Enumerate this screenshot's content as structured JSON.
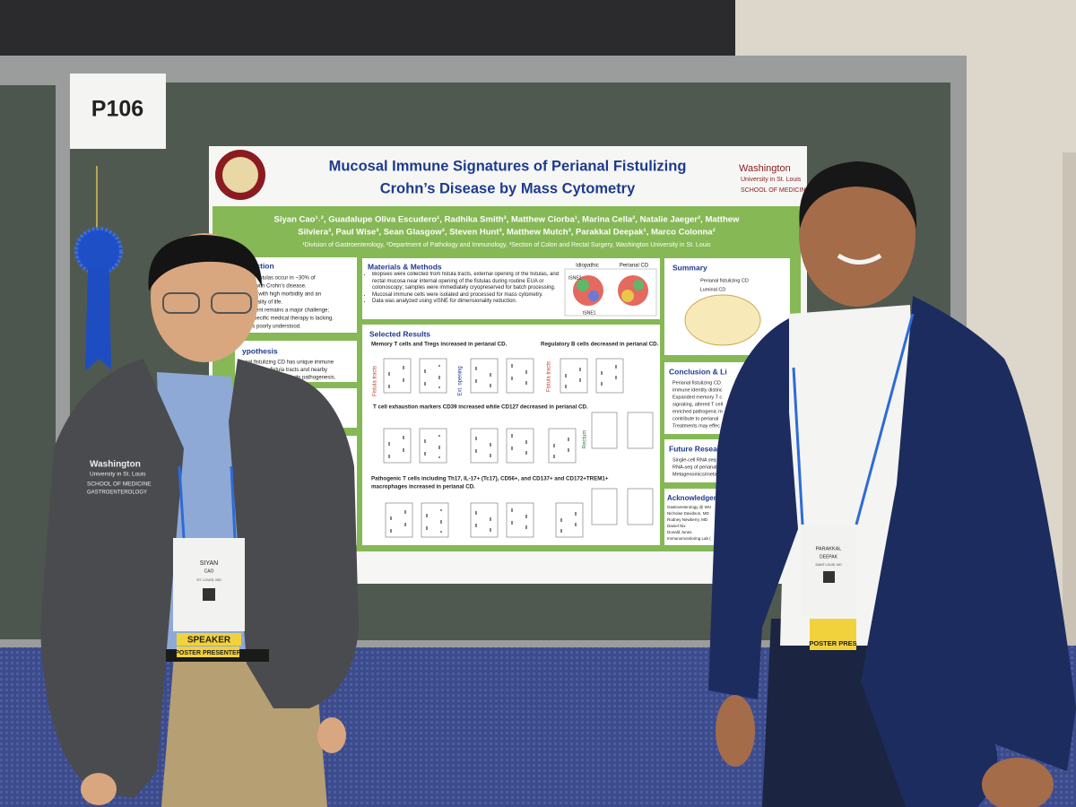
{
  "board": {
    "label": "P106"
  },
  "poster": {
    "title": [
      "Mucosal Immune Signatures of Perianal Fistulizing",
      "Crohn’s Disease by Mass Cytometry"
    ],
    "logo": [
      "Washington",
      "University in St. Louis",
      "SCHOOL OF MEDICINE"
    ],
    "authors": [
      "Siyan Cao¹˒², Guadalupe Oliva Escudero¹, Radhika Smith³, Matthew Ciorba¹, Marina Cella², Natalie Jaeger², Matthew",
      "Silviera³, Paul Wise³, Sean Glasgow³, Steven Hunt³, Matthew Mutch³, Parakkal Deepak¹, Marco Colonna²"
    ],
    "affiliations": "¹Division of Gastroenterology, ²Department of Pathology and Immunology, ³Section of Colon and Rectal Surgery, Washington University in St. Louis",
    "intro": {
      "heading": "duction",
      "lines": [
        "al fistulas occur in ~30% of",
        "s with Crohn’s disease.",
        "ed with high morbidity and an",
        "quality of life.",
        "ment remains a major challenge;",
        "specific medical therapy is lacking.",
        "is poorly understood."
      ]
    },
    "hypothesis": {
      "heading": "ypothesis",
      "lines": [
        "anal fistulizing CD has unique immune",
        "tures in the fistula tracts and nearby",
        "and may contribute to its pathogenesis."
      ]
    },
    "methods": {
      "heading": "Materials & Methods",
      "bullets": [
        "Biopsies were collected from fistula tracts, external opening of the fistulas, and rectal mucosa near internal opening of the fistulas during routine EUA or colonoscopy; samples were immediately cryopreserved for batch processing.",
        "Mucosal immune cells were isolated and processed for mass cytometry.",
        "Data was analyzed using viSNE for dimensionality reduction."
      ],
      "figure": [
        "Idiopathic",
        "Perianal CD",
        "tSNE1",
        "tSNE2"
      ]
    },
    "results": {
      "heading": "Selected Results",
      "findings": [
        "Memory T cells and Tregs increased in perianal CD.",
        "Regulatory B cells decreased in perianal CD.",
        "T cell exhaustion markers CD39 increased while CD127 decreased in perianal CD.",
        "Pathogenic T cells including Th17, IL-17+ (Tc17), CD56+, and CD137+ and CD172+TREM1+",
        "macrophages increased in perianal CD."
      ],
      "row_labels": [
        "Fistula tracts",
        "Ext. opening",
        "Fistula tracts",
        "Rectum"
      ]
    },
    "summary": {
      "heading": "Summary",
      "labels": [
        "Perianal fistulizing CD",
        "Luminal CD"
      ]
    },
    "conclusion": {
      "heading": "Conclusion & Li",
      "lines": [
        "Perianal fistulizing CD",
        "immune identity distinc",
        "Expanded memory T c",
        "signaling, altered T cell",
        "enriched pathogenic m",
        "contribute to perianal",
        "Treatments may effec"
      ]
    },
    "future": {
      "heading": "Future Researc",
      "lines": [
        "Single-cell RNA seq",
        "RNA-seq of perianal",
        "Metagenomics/metab"
      ]
    },
    "acknowledgements": {
      "heading": "Acknowledgem",
      "lines": [
        "Gastroenterology @ WU",
        "Nicholas Davidson, MD",
        "Rodney Newberry, MD",
        "Daniel Nix",
        "Donald Jones",
        "Immunomonitoring Lab ("
      ]
    }
  },
  "presenters": [
    {
      "jacket": [
        "Washington",
        "University in St. Louis",
        "SCHOOL OF MEDICINE",
        "GASTROENTEROLOGY"
      ],
      "badge": {
        "first": "SIYAN",
        "last": "CAO",
        "city": "ST. LOUIS, MO",
        "ribbon": "SPEAKER",
        "ribbon2": "POSTER PRESENTER"
      }
    },
    {
      "badge": {
        "first": "PARAKKAL",
        "last": "DEEPAK",
        "city": "SAINT LOUIS, MO",
        "ribbon": "POSTER PRES"
      }
    }
  ]
}
